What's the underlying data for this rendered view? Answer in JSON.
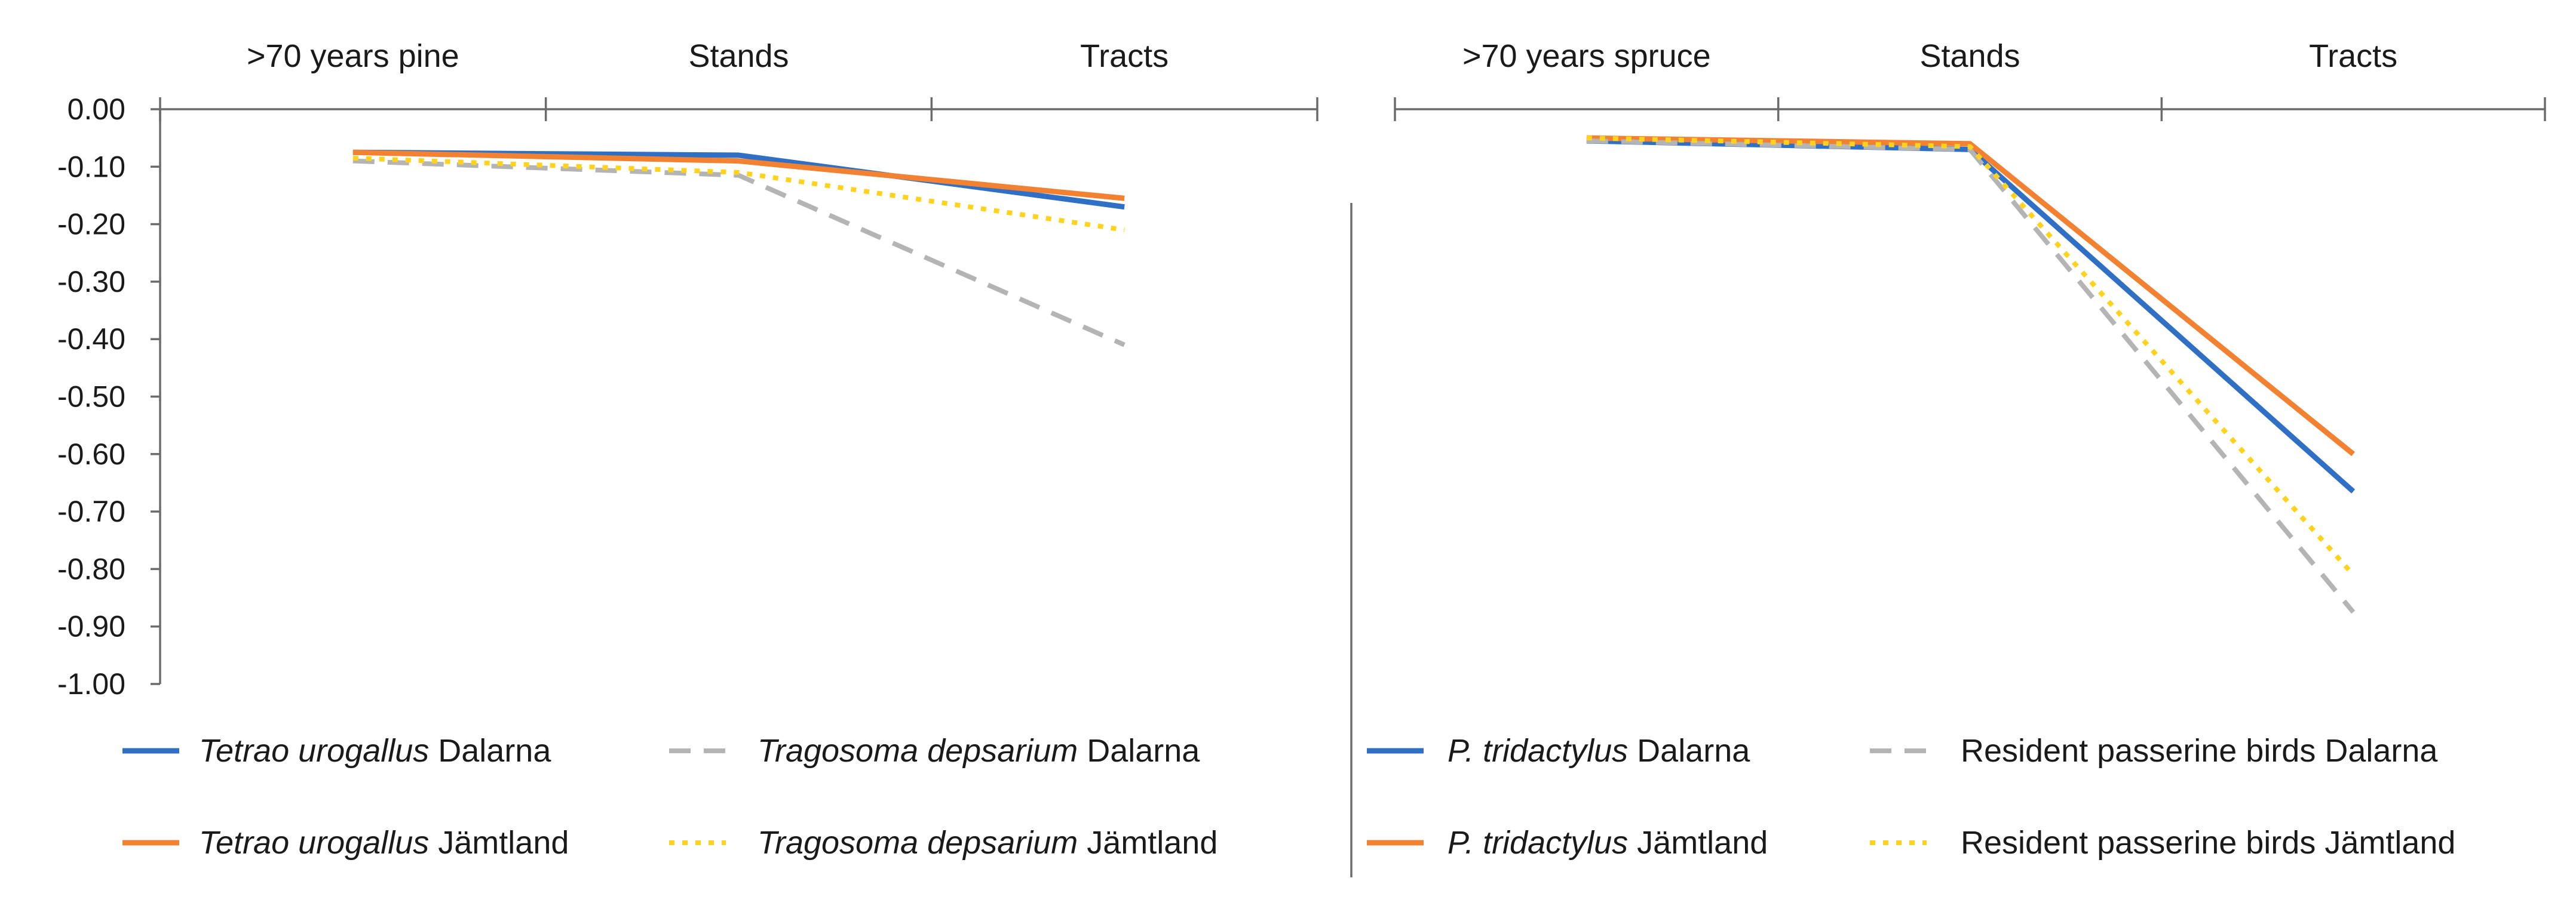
{
  "chart_data": [
    {
      "type": "line",
      "panel": "left",
      "categories": [
        ">70 years pine",
        "Stands",
        "Tracts"
      ],
      "ylim": [
        -1.0,
        0.0
      ],
      "yticks": [
        "0.00",
        "-0.10",
        "-0.20",
        "-0.30",
        "-0.40",
        "-0.50",
        "-0.60",
        "-0.70",
        "-0.80",
        "-0.90",
        "-1.00"
      ],
      "series": [
        {
          "name_italic": "Tetrao urogallus",
          "name_rest": " Dalarna",
          "color": "#2f6fc4",
          "style": "solid",
          "values": [
            -0.075,
            -0.08,
            -0.17
          ]
        },
        {
          "name_italic": "Tetrao urogallus",
          "name_rest": " Jämtland",
          "color": "#f28232",
          "style": "solid",
          "values": [
            -0.075,
            -0.09,
            -0.155
          ]
        },
        {
          "name_italic": "Tragosoma depsarium",
          "name_rest": " Dalarna",
          "color": "#b4b4b4",
          "style": "dashed",
          "values": [
            -0.09,
            -0.115,
            -0.41
          ]
        },
        {
          "name_italic": "Tragosoma depsarium",
          "name_rest": " Jämtland",
          "color": "#ffd21e",
          "style": "dotted",
          "values": [
            -0.085,
            -0.11,
            -0.21
          ]
        }
      ]
    },
    {
      "type": "line",
      "panel": "right",
      "categories": [
        ">70 years spruce",
        "Stands",
        "Tracts"
      ],
      "ylim": [
        -1.0,
        0.0
      ],
      "series": [
        {
          "name_italic": "P. tridactylus",
          "name_rest": " Dalarna",
          "color": "#2f6fc4",
          "style": "solid",
          "values": [
            -0.055,
            -0.07,
            -0.665
          ]
        },
        {
          "name_italic": "P. tridactylus",
          "name_rest": " Jämtland",
          "color": "#f28232",
          "style": "solid",
          "values": [
            -0.05,
            -0.06,
            -0.6
          ]
        },
        {
          "name_italic": "",
          "name_rest": "Resident passerine birds Dalarna",
          "color": "#b4b4b4",
          "style": "dashed",
          "values": [
            -0.055,
            -0.07,
            -0.875
          ]
        },
        {
          "name_italic": "",
          "name_rest": "Resident passerine birds Jämtland",
          "color": "#ffd21e",
          "style": "dotted",
          "values": [
            -0.05,
            -0.065,
            -0.81
          ]
        }
      ]
    }
  ]
}
